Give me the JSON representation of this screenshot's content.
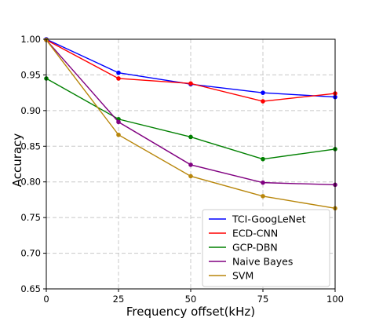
{
  "chart_data": {
    "type": "line",
    "title": "",
    "xlabel": "Frequency offset(kHz)",
    "ylabel": "Accuracy",
    "x": [
      0,
      25,
      50,
      75,
      100
    ],
    "xlim": [
      0,
      100
    ],
    "ylim": [
      0.65,
      1.0
    ],
    "xticks": [
      "0",
      "25",
      "50",
      "75",
      "100"
    ],
    "yticks": [
      "0.65",
      "0.70",
      "0.75",
      "0.80",
      "0.85",
      "0.90",
      "0.95",
      "1.00"
    ],
    "grid": true,
    "legend_position": "bottom-right",
    "series": [
      {
        "name": "TCI-GoogLeNet",
        "color": "#0000ff",
        "values": [
          1.0,
          0.953,
          0.937,
          0.925,
          0.919
        ]
      },
      {
        "name": "ECD-CNN",
        "color": "#ff0000",
        "values": [
          0.999,
          0.945,
          0.938,
          0.913,
          0.924
        ]
      },
      {
        "name": "GCP-DBN",
        "color": "#008000",
        "values": [
          0.945,
          0.888,
          0.863,
          0.832,
          0.846
        ]
      },
      {
        "name": "Naive Bayes",
        "color": "#800080",
        "values": [
          0.999,
          0.884,
          0.824,
          0.799,
          0.796
        ]
      },
      {
        "name": "SVM",
        "color": "#b8860b",
        "values": [
          0.999,
          0.866,
          0.808,
          0.78,
          0.763
        ]
      }
    ]
  }
}
